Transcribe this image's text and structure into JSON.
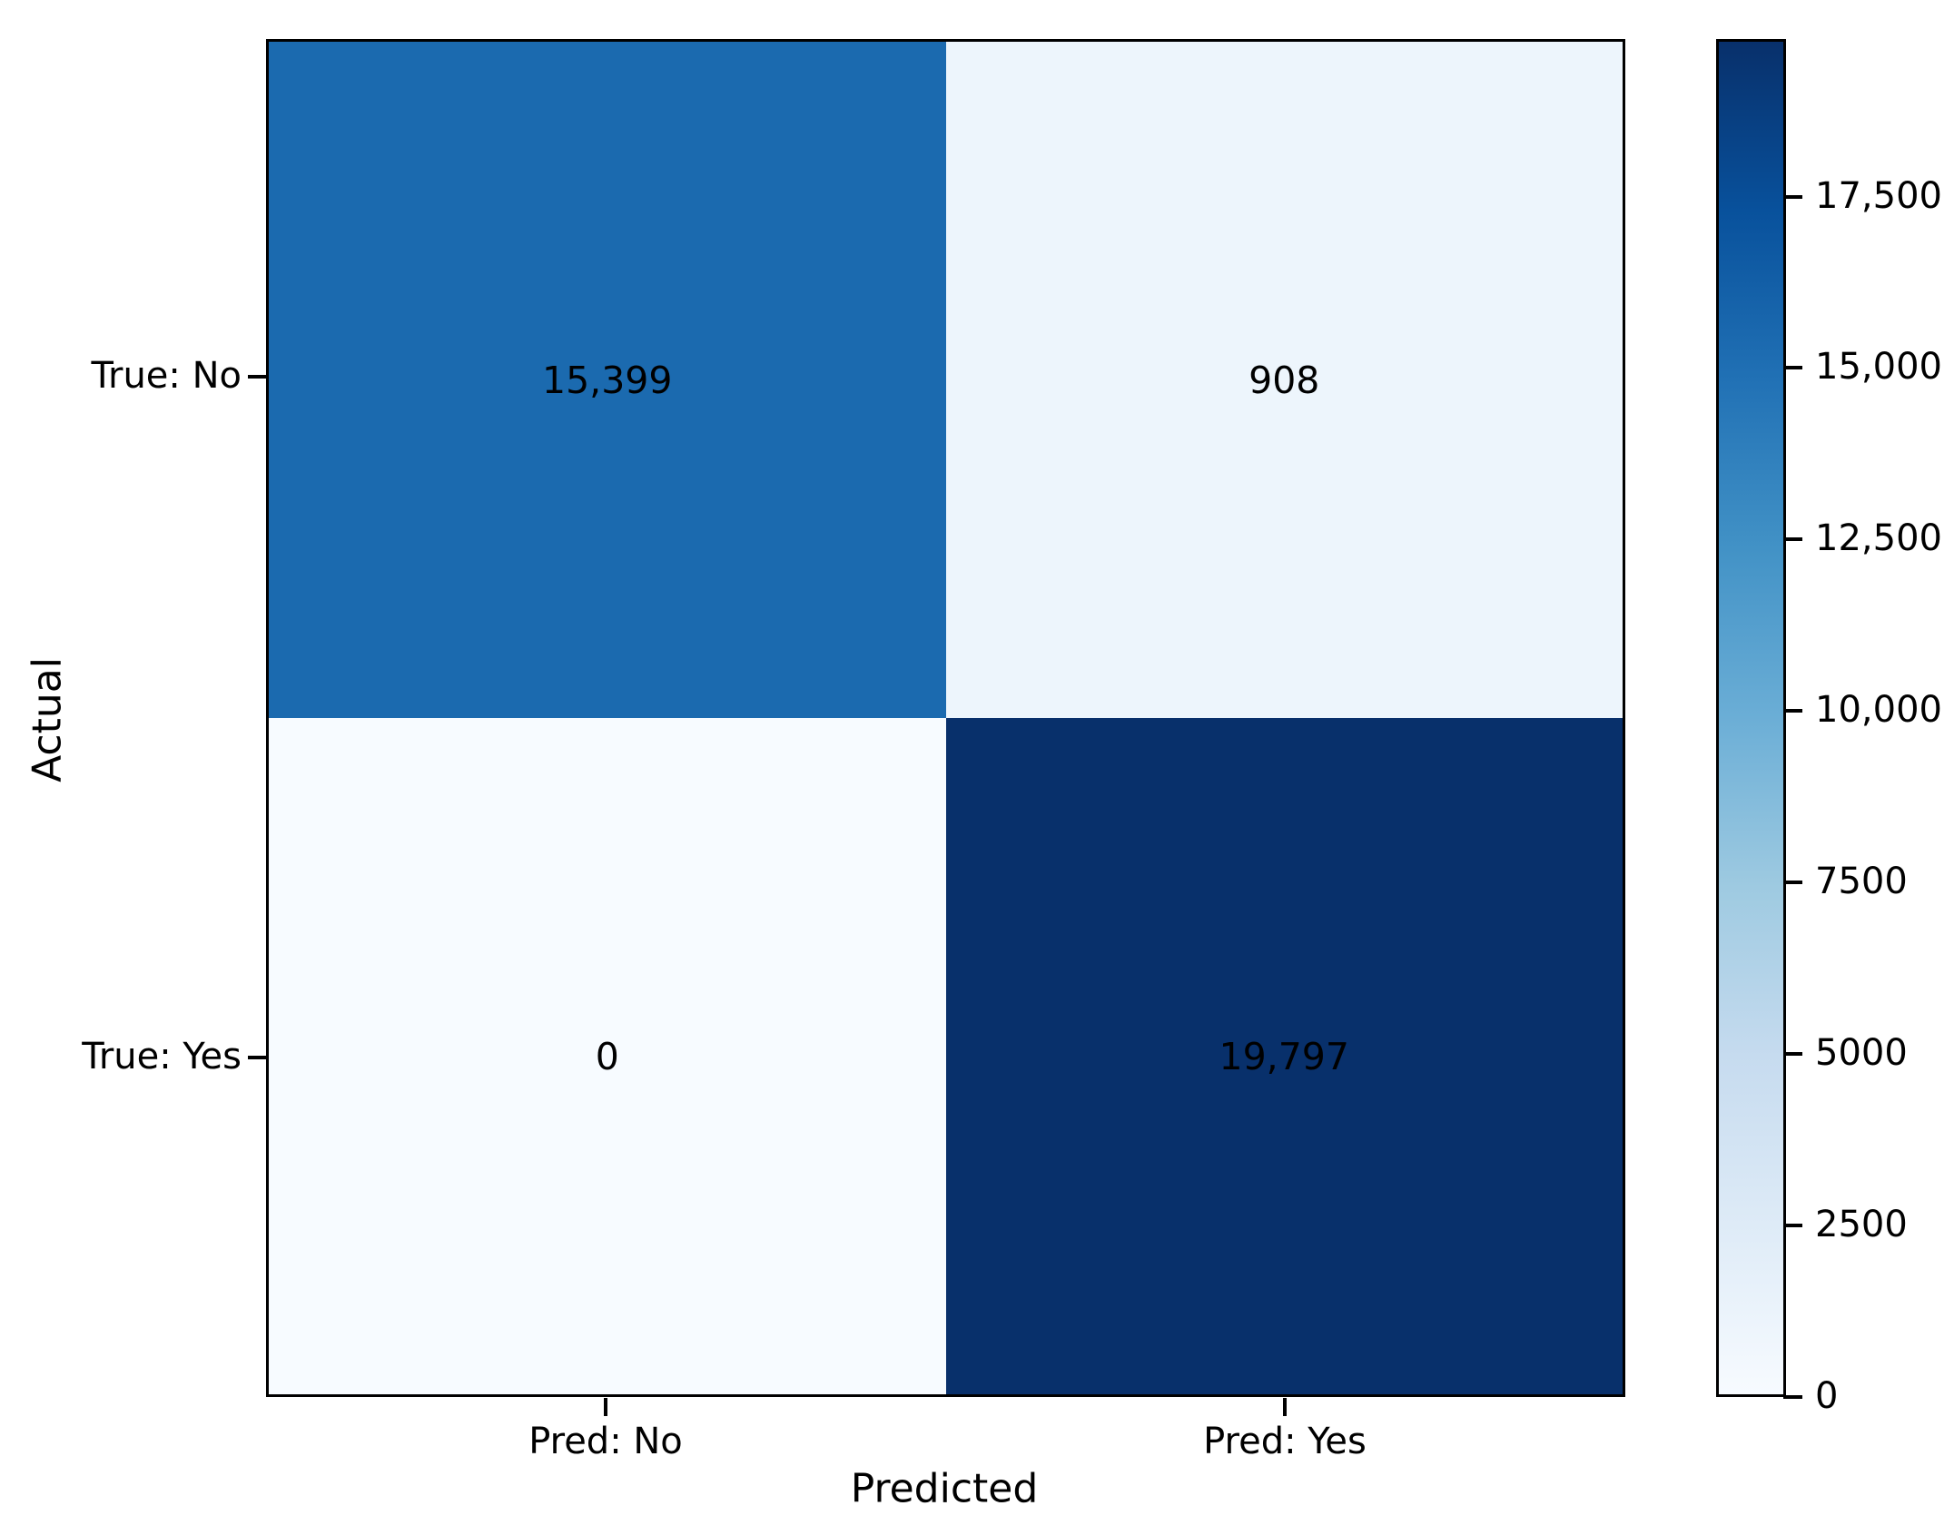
{
  "chart_data": {
    "type": "heatmap",
    "title": "",
    "xlabel": "Predicted",
    "ylabel": "Actual",
    "x_categories": [
      "Pred: No",
      "Pred: Yes"
    ],
    "y_categories": [
      "True: No",
      "True: Yes"
    ],
    "matrix": [
      [
        15399,
        908
      ],
      [
        0,
        19797
      ]
    ],
    "cells": [
      {
        "row": 0,
        "col": 0,
        "value": 15399,
        "label": "15,399",
        "color": "#1b6aaf"
      },
      {
        "row": 0,
        "col": 1,
        "value": 908,
        "label": "908",
        "color": "#edf5fc"
      },
      {
        "row": 1,
        "col": 0,
        "value": 0,
        "label": "0",
        "color": "#f7fbff"
      },
      {
        "row": 1,
        "col": 1,
        "value": 19797,
        "label": "19,797",
        "color": "#08306b"
      }
    ],
    "colormap": "Blues",
    "grid": false,
    "legend_position": "none",
    "colorbar": {
      "vmin": 0,
      "vmax": 19797,
      "ticks": [
        {
          "value": 17500,
          "label": "17,500"
        },
        {
          "value": 15000,
          "label": "15,000"
        },
        {
          "value": 12500,
          "label": "12,500"
        },
        {
          "value": 10000,
          "label": "10,000"
        },
        {
          "value": 7500,
          "label": "7500"
        },
        {
          "value": 5000,
          "label": "5000"
        },
        {
          "value": 2500,
          "label": "2500"
        },
        {
          "value": 0,
          "label": "0"
        }
      ],
      "gradient_stops_top_to_bottom": [
        "#08306b",
        "#08519c",
        "#2171b5",
        "#4292c6",
        "#6baed6",
        "#9ecae1",
        "#c6dbef",
        "#deebf7",
        "#f7fbff"
      ]
    },
    "colors": {
      "background": "#ffffff",
      "text": "#000000",
      "axis": "#000000"
    }
  }
}
